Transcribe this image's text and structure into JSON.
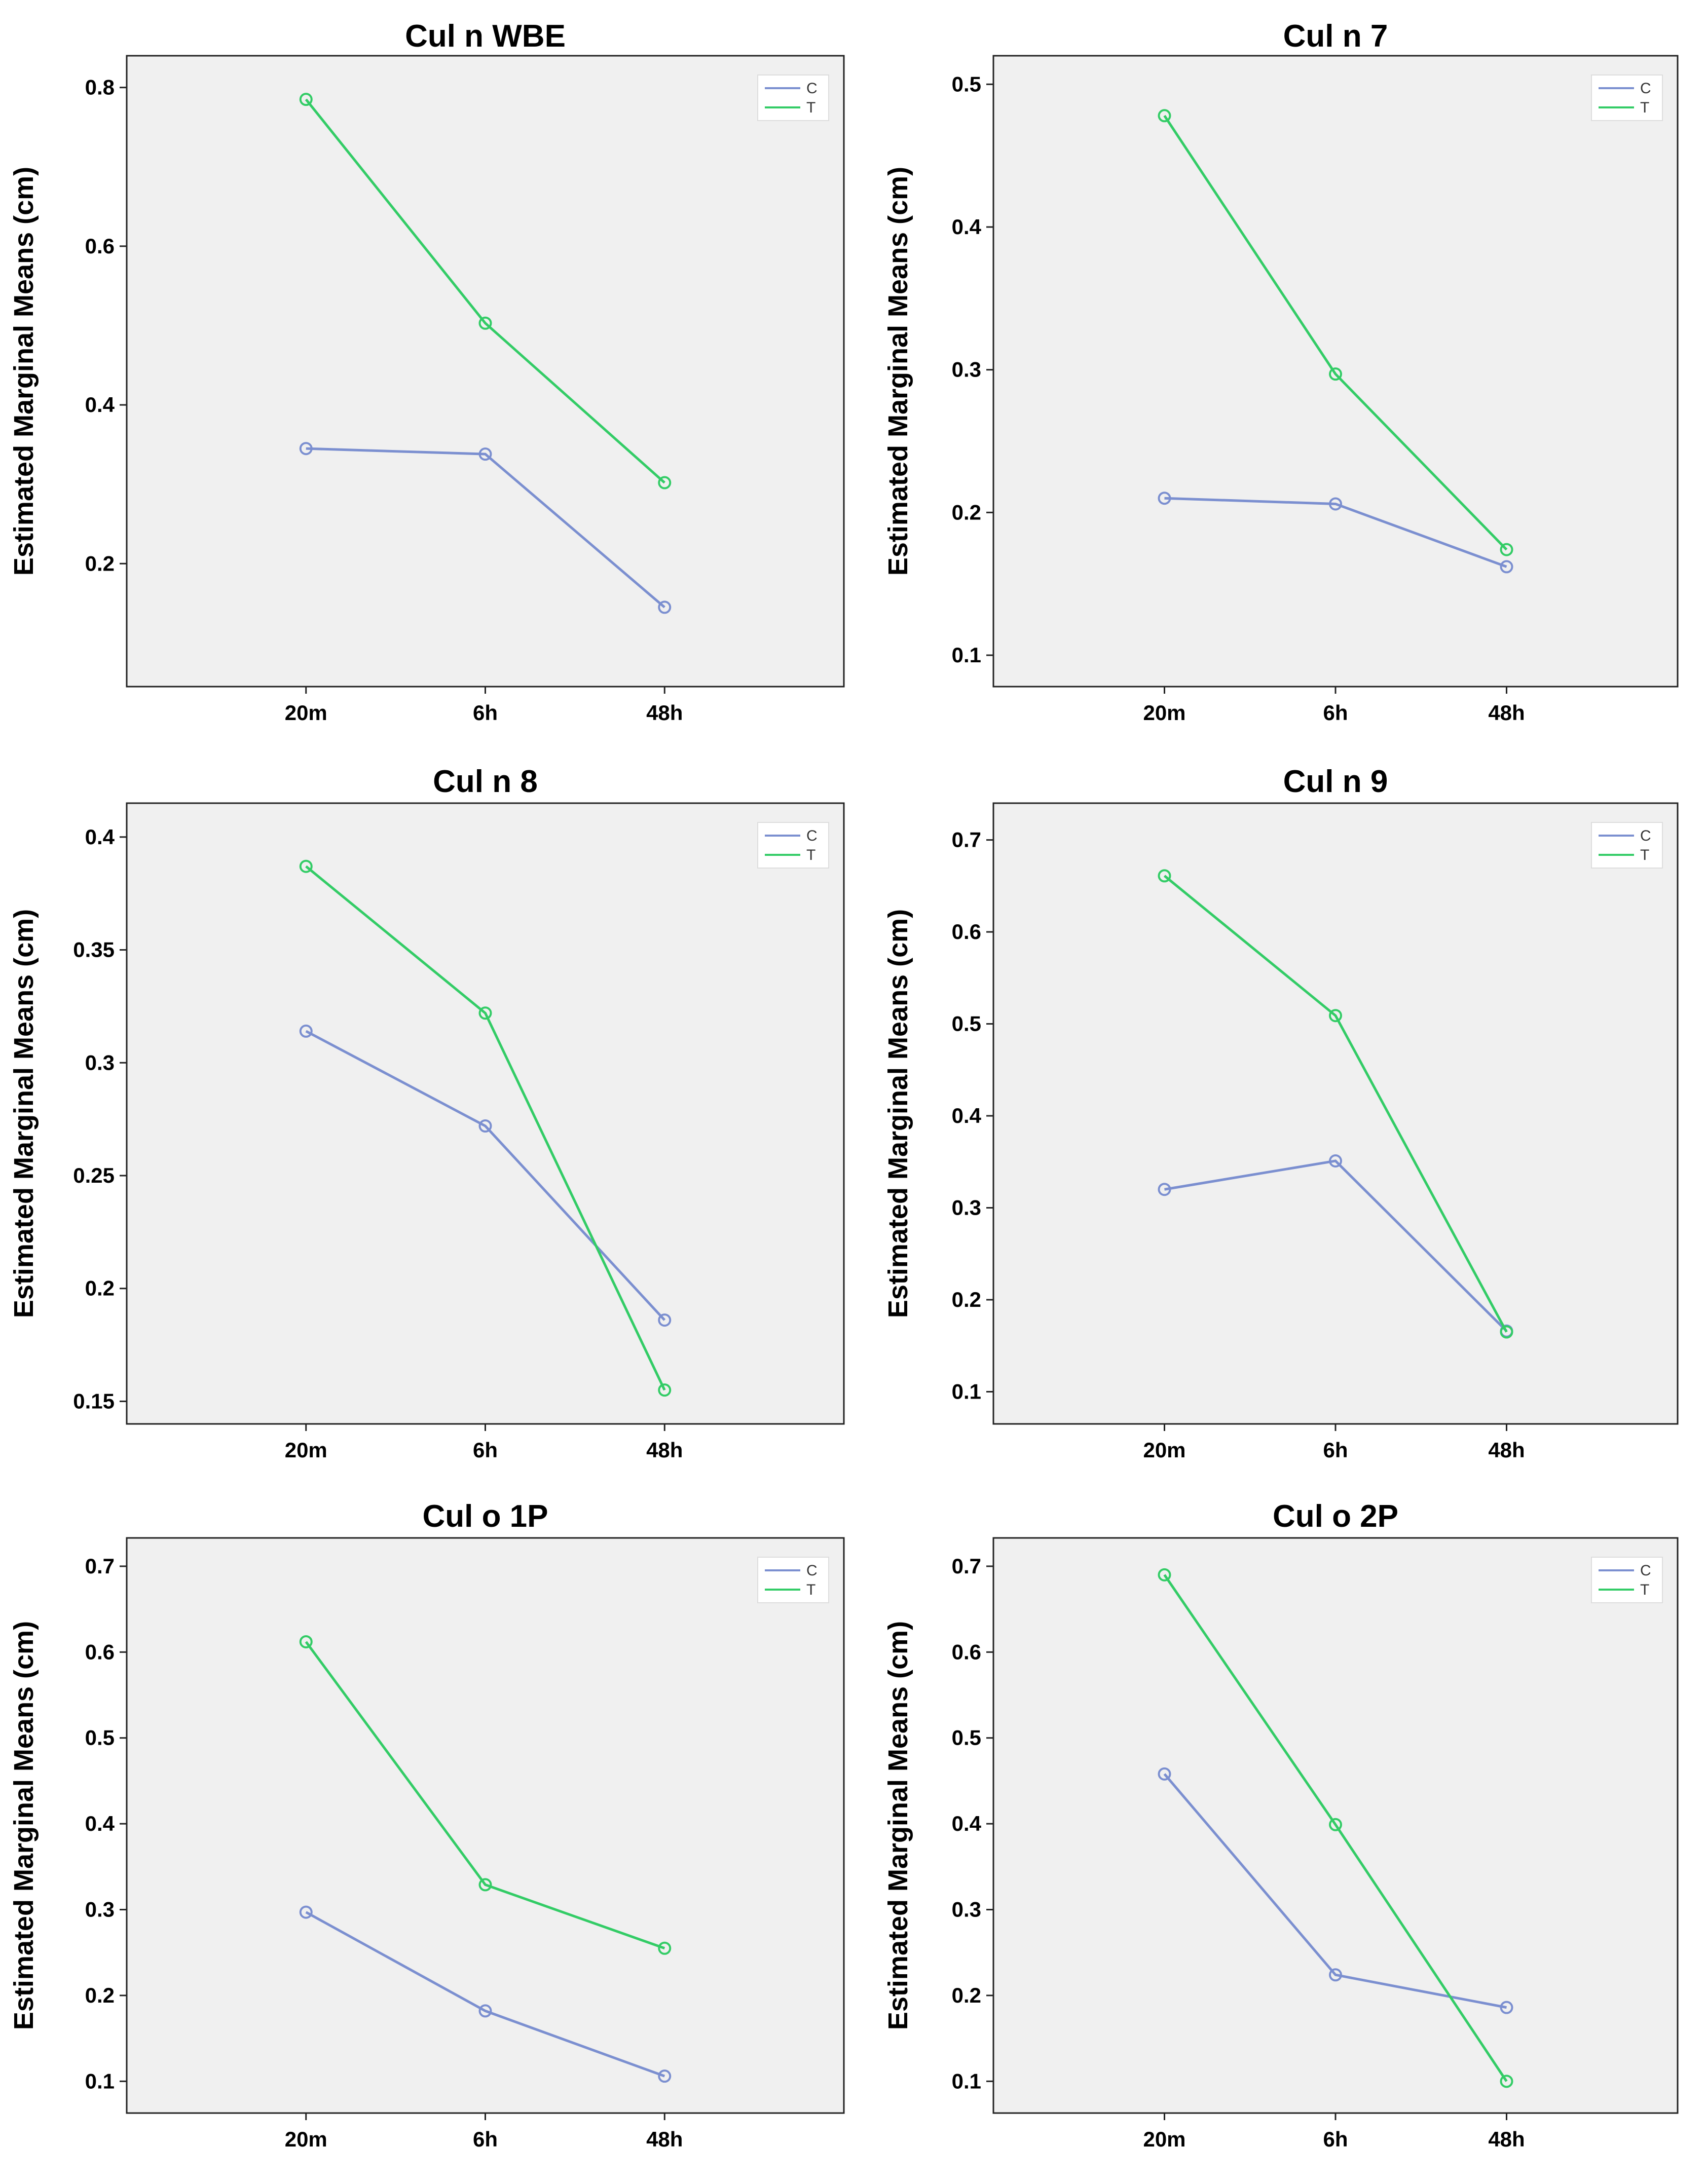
{
  "figure": {
    "colors": {
      "C": "#7b8fd0",
      "T": "#33cc66",
      "plot_bg": "#f0f0f0",
      "axis": "#222222"
    }
  },
  "chart_data": [
    {
      "type": "line",
      "title": "Cul n WBE",
      "ylabel": "Estimated Marginal Means (cm)",
      "xlabel": "",
      "categories": [
        "20m",
        "6h",
        "48h"
      ],
      "yticks": [
        0.2,
        0.4,
        0.6,
        0.8
      ],
      "ytick_labels": [
        "0.2",
        "0.4",
        "0.6",
        "0.8"
      ],
      "ylim": [
        0.045,
        0.84
      ],
      "legend": "top-right",
      "series": [
        {
          "name": "C",
          "values": [
            0.345,
            0.338,
            0.145
          ]
        },
        {
          "name": "T",
          "values": [
            0.785,
            0.503,
            0.302
          ]
        }
      ]
    },
    {
      "type": "line",
      "title": "Cul n 7",
      "ylabel": "Estimated Marginal Means (cm)",
      "xlabel": "",
      "categories": [
        "20m",
        "6h",
        "48h"
      ],
      "yticks": [
        0.1,
        0.2,
        0.3,
        0.4,
        0.5
      ],
      "ytick_labels": [
        "0.1",
        "0.2",
        "0.3",
        "0.4",
        "0.5"
      ],
      "ylim": [
        0.078,
        0.52
      ],
      "legend": "top-right",
      "series": [
        {
          "name": "C",
          "values": [
            0.21,
            0.206,
            0.162
          ]
        },
        {
          "name": "T",
          "values": [
            0.478,
            0.297,
            0.174
          ]
        }
      ]
    },
    {
      "type": "line",
      "title": "Cul n 8",
      "ylabel": "Estimated Marginal Means (cm)",
      "xlabel": "",
      "categories": [
        "20m",
        "6h",
        "48h"
      ],
      "yticks": [
        0.15,
        0.2,
        0.25,
        0.3,
        0.35,
        0.4
      ],
      "ytick_labels": [
        "0.15",
        "0.2",
        "0.25",
        "0.3",
        "0.35",
        "0.4"
      ],
      "ylim": [
        0.14,
        0.415
      ],
      "legend": "top-right",
      "series": [
        {
          "name": "C",
          "values": [
            0.314,
            0.272,
            0.186
          ]
        },
        {
          "name": "T",
          "values": [
            0.387,
            0.322,
            0.155
          ]
        }
      ]
    },
    {
      "type": "line",
      "title": "Cul n 9",
      "ylabel": "Estimated Marginal Means (cm)",
      "xlabel": "",
      "categories": [
        "20m",
        "6h",
        "48h"
      ],
      "yticks": [
        0.1,
        0.2,
        0.3,
        0.4,
        0.5,
        0.6,
        0.7
      ],
      "ytick_labels": [
        "0.1",
        "0.2",
        "0.3",
        "0.4",
        "0.5",
        "0.6",
        "0.7"
      ],
      "ylim": [
        0.065,
        0.74
      ],
      "legend": "top-right",
      "series": [
        {
          "name": "C",
          "values": [
            0.32,
            0.351,
            0.166
          ]
        },
        {
          "name": "T",
          "values": [
            0.661,
            0.509,
            0.165
          ]
        }
      ]
    },
    {
      "type": "line",
      "title": "Cul o 1P",
      "ylabel": "Estimated Marginal Means (cm)",
      "xlabel": "",
      "categories": [
        "20m",
        "6h",
        "48h"
      ],
      "yticks": [
        0.1,
        0.2,
        0.3,
        0.4,
        0.5,
        0.6,
        0.7
      ],
      "ytick_labels": [
        "0.1",
        "0.2",
        "0.3",
        "0.4",
        "0.5",
        "0.6",
        "0.7"
      ],
      "ylim": [
        0.063,
        0.733
      ],
      "legend": "top-right",
      "series": [
        {
          "name": "C",
          "values": [
            0.297,
            0.182,
            0.106
          ]
        },
        {
          "name": "T",
          "values": [
            0.612,
            0.329,
            0.255
          ]
        }
      ]
    },
    {
      "type": "line",
      "title": "Cul o 2P",
      "ylabel": "Estimated Marginal Means (cm)",
      "xlabel": "",
      "categories": [
        "20m",
        "6h",
        "48h"
      ],
      "yticks": [
        0.1,
        0.2,
        0.3,
        0.4,
        0.5,
        0.6,
        0.7
      ],
      "ytick_labels": [
        "0.1",
        "0.2",
        "0.3",
        "0.4",
        "0.5",
        "0.6",
        "0.7"
      ],
      "ylim": [
        0.063,
        0.733
      ],
      "legend": "top-right",
      "series": [
        {
          "name": "C",
          "values": [
            0.458,
            0.224,
            0.186
          ]
        },
        {
          "name": "T",
          "values": [
            0.69,
            0.399,
            0.1
          ]
        }
      ]
    }
  ]
}
